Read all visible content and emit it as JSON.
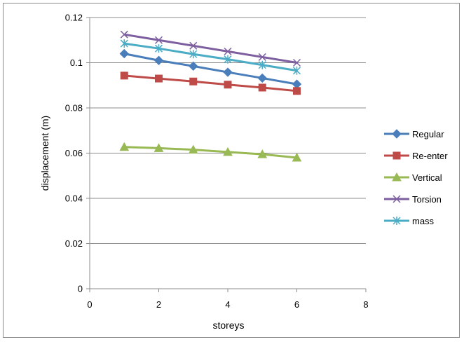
{
  "chart_data": {
    "type": "line",
    "title": "",
    "xlabel": "storeys",
    "ylabel": "displacement (m)",
    "xlim": [
      0,
      8
    ],
    "ylim": [
      0,
      0.12
    ],
    "x_ticks": [
      0,
      2,
      4,
      6,
      8
    ],
    "y_ticks": [
      0,
      0.02,
      0.04,
      0.06,
      0.08,
      0.1,
      0.12
    ],
    "x_tick_labels": [
      "0",
      "2",
      "4",
      "6",
      "8"
    ],
    "y_tick_labels": [
      "0",
      "0.02",
      "0.04",
      "0.06",
      "0.08",
      "0.1",
      "0.12"
    ],
    "grid": "horizontal",
    "legend_position": "right",
    "x": [
      1,
      2,
      3,
      4,
      5,
      6
    ],
    "series": [
      {
        "name": "Regular",
        "color": "#4a7ebb",
        "marker": "diamond",
        "values": [
          0.104,
          0.101,
          0.0985,
          0.0958,
          0.0932,
          0.0905
        ]
      },
      {
        "name": "Re-enter",
        "color": "#be4b48",
        "marker": "square",
        "values": [
          0.0943,
          0.093,
          0.0917,
          0.0903,
          0.089,
          0.0875
        ]
      },
      {
        "name": "Vertical",
        "color": "#98b954",
        "marker": "triangle",
        "values": [
          0.0627,
          0.0622,
          0.0615,
          0.0605,
          0.0595,
          0.058
        ]
      },
      {
        "name": "Torsion",
        "color": "#7d5fa0",
        "marker": "x",
        "values": [
          0.1125,
          0.11,
          0.1075,
          0.105,
          0.1025,
          0.1
        ]
      },
      {
        "name": "mass",
        "color": "#4bacc6",
        "marker": "asterisk",
        "values": [
          0.1085,
          0.1063,
          0.1038,
          0.1015,
          0.099,
          0.0965
        ]
      }
    ]
  }
}
